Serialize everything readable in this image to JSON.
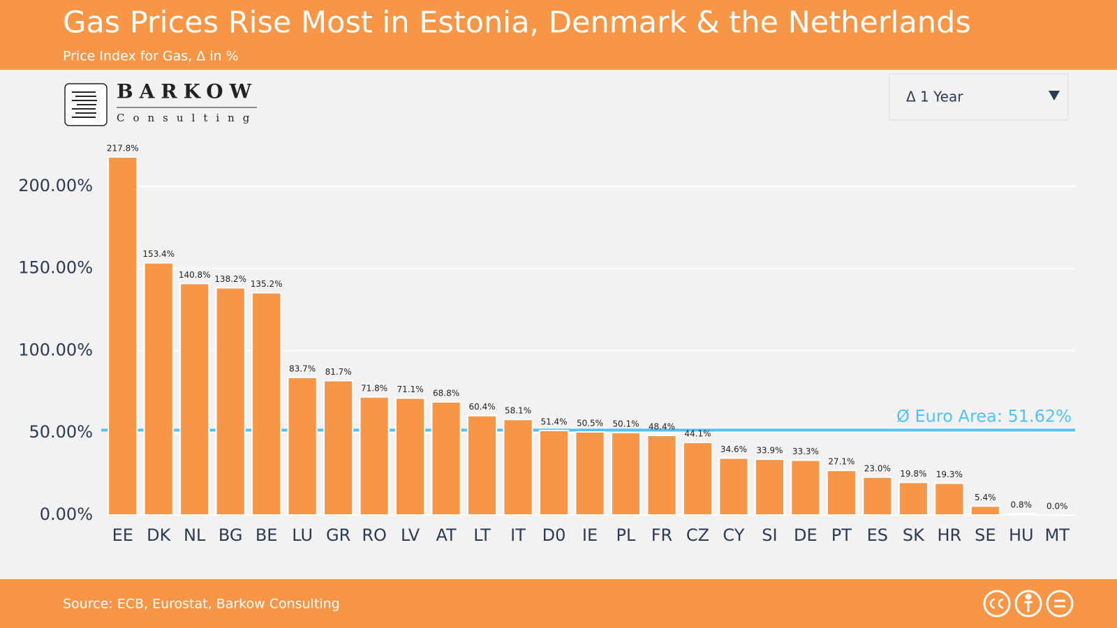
{
  "header": {
    "title": "Gas Prices Rise Most in Estonia, Denmark & the Netherlands",
    "subtitle": "Price Index for Gas, Δ in %"
  },
  "logo": {
    "name": "BARKOW",
    "tagline": "Consulting"
  },
  "dropdown": {
    "label": "Δ 1 Year"
  },
  "chart_data": {
    "type": "bar",
    "color": "#f79646",
    "categories": [
      "EE",
      "DK",
      "NL",
      "BG",
      "BE",
      "LU",
      "GR",
      "RO",
      "LV",
      "AT",
      "LT",
      "IT",
      "D0",
      "IE",
      "PL",
      "FR",
      "CZ",
      "CY",
      "SI",
      "DE",
      "PT",
      "ES",
      "SK",
      "HR",
      "SE",
      "HU",
      "MT"
    ],
    "values": [
      217.8,
      153.4,
      140.8,
      138.2,
      135.2,
      83.7,
      81.7,
      71.8,
      71.1,
      68.8,
      60.4,
      58.1,
      51.4,
      50.5,
      50.1,
      48.4,
      44.1,
      34.6,
      33.9,
      33.3,
      27.1,
      23.0,
      19.8,
      19.3,
      5.4,
      0.8,
      0.0
    ],
    "value_labels": [
      "217.8%",
      "153.4%",
      "140.8%",
      "138.2%",
      "135.2%",
      "83.7%",
      "81.7%",
      "71.8%",
      "71.1%",
      "68.8%",
      "60.4%",
      "58.1%",
      "51.4%",
      "50.5%",
      "50.1%",
      "48.4%",
      "44.1%",
      "34.6%",
      "33.9%",
      "33.3%",
      "27.1%",
      "23.0%",
      "19.8%",
      "19.3%",
      "5.4%",
      "0.8%",
      "0.0%"
    ],
    "ylim": [
      0,
      225
    ],
    "yticks": [
      {
        "value": 0,
        "label": "0.00%"
      },
      {
        "value": 50,
        "label": "50.00%"
      },
      {
        "value": 100,
        "label": "100.00%"
      },
      {
        "value": 150,
        "label": "150.00%"
      },
      {
        "value": 200,
        "label": "200.00%"
      }
    ],
    "grid": true,
    "reference_line": {
      "value": 51.62,
      "label": "Ø Euro Area: 51.62%",
      "color": "#4fc3f7"
    }
  },
  "footer": {
    "source": "Source: ECB, Eurostat, Barkow Consulting"
  }
}
